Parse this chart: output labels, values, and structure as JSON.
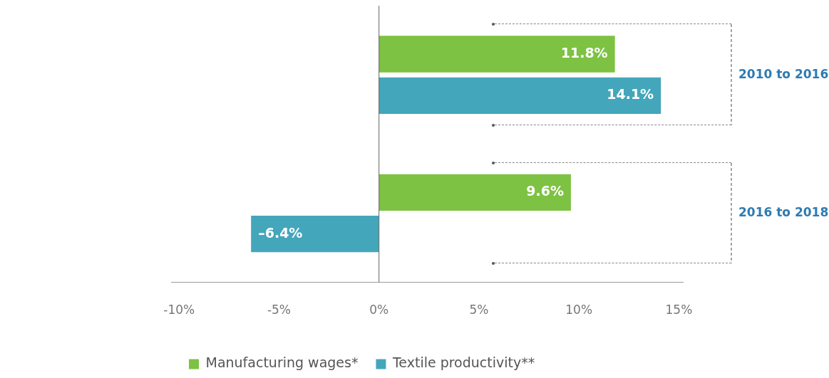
{
  "chart_data": {
    "type": "bar",
    "orientation": "horizontal",
    "categories": [
      "2010 to 2016",
      "2016 to 2018"
    ],
    "series": [
      {
        "name": "Manufacturing wages*",
        "color": "#7dc242",
        "values": [
          11.8,
          9.6
        ],
        "value_labels": [
          "11.8%",
          "9.6%"
        ]
      },
      {
        "name": "Textile productivity**",
        "color": "#44a6bb",
        "values": [
          14.1,
          -6.4
        ],
        "value_labels": [
          "14.1%",
          "–6.4%"
        ]
      }
    ],
    "xlim": [
      -10.4,
      15.2
    ],
    "xticks": [
      {
        "value": -10,
        "label": "-10%"
      },
      {
        "value": -5,
        "label": "-5%"
      },
      {
        "value": 0,
        "label": "0%"
      },
      {
        "value": 5,
        "label": "5%"
      },
      {
        "value": 10,
        "label": "10%"
      },
      {
        "value": 15,
        "label": "15%"
      }
    ],
    "ref_lines": [
      {
        "axis": "x",
        "value": 0,
        "color": "#666666"
      }
    ],
    "grid": false,
    "legend": "bottom"
  }
}
